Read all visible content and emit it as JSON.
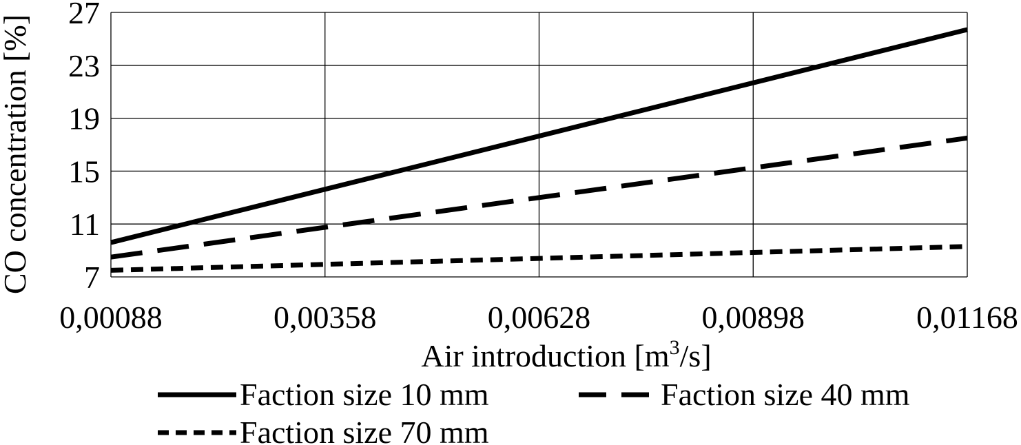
{
  "chart_data": {
    "type": "line",
    "title": "",
    "xlabel": "Air introduction [m3/s]",
    "xlabel_parts": {
      "prefix": "Air introduction [m",
      "superscript": "3",
      "suffix": "/s]"
    },
    "ylabel": "CO concentration [%]",
    "x": [
      0.00088,
      0.01168
    ],
    "x_ticks": [
      "0,00088",
      "0,00358",
      "0,00628",
      "0,00898",
      "0,01168"
    ],
    "x_tick_values": [
      0.00088,
      0.00358,
      0.00628,
      0.00898,
      0.01168
    ],
    "xlim": [
      0.00088,
      0.01168
    ],
    "y_ticks": [
      "7",
      "11",
      "15",
      "19",
      "23",
      "27"
    ],
    "y_tick_values": [
      7,
      11,
      15,
      19,
      23,
      27
    ],
    "ylim": [
      7,
      27
    ],
    "grid": true,
    "legend_position": "bottom",
    "series": [
      {
        "name": "Faction size  10 mm",
        "style": "solid",
        "color": "#000000",
        "x": [
          0.00088,
          0.01168
        ],
        "values": [
          9.6,
          25.7
        ]
      },
      {
        "name": "Faction size  40 mm",
        "style": "long-dash",
        "color": "#000000",
        "x": [
          0.00088,
          0.01168
        ],
        "values": [
          8.5,
          17.5
        ]
      },
      {
        "name": "Faction size  70 mm",
        "style": "short-dash",
        "color": "#000000",
        "x": [
          0.00088,
          0.01168
        ],
        "values": [
          7.5,
          9.3
        ]
      }
    ]
  }
}
